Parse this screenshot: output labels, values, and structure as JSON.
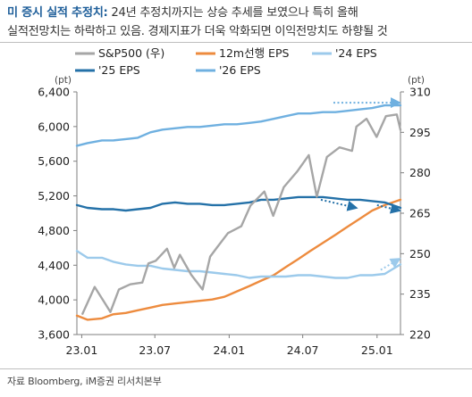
{
  "title": {
    "head": "미 증시 실적 추정치:",
    "line1": " 24년 추정치까지는 상승 추세를 보였으나 특히 올해",
    "line2": "실적전망치는 하락하고 있음. 경제지표가 더욱 악화되면 이익전망치도 하향될 것"
  },
  "source": "자료 Bloomberg, iM증권 리서치본부",
  "chart_data": {
    "type": "line",
    "x_ticks": [
      "23.01",
      "23.07",
      "24.01",
      "24.07",
      "25.01"
    ],
    "x_range": [
      "2022-12-20",
      "2025-02-28"
    ],
    "y_left": {
      "unit": "(pt)",
      "ticks": [
        3600,
        4000,
        4400,
        4800,
        5200,
        5600,
        6000,
        6400
      ],
      "lim": [
        3600,
        6400
      ]
    },
    "y_right": {
      "unit": "(pt)",
      "ticks": [
        220,
        235,
        250,
        265,
        280,
        295,
        310
      ],
      "lim": [
        220,
        310
      ]
    },
    "grid": false,
    "legend": [
      {
        "label": "S&P500 (우)",
        "color": "#a6a6a6"
      },
      {
        "label": "12m선행 EPS",
        "color": "#ed8b3e"
      },
      {
        "label": "'24 EPS",
        "color": "#9ccaeb"
      },
      {
        "label": "'25 EPS",
        "color": "#2471a8"
      },
      {
        "label": "'26 EPS",
        "color": "#6fb0e0"
      }
    ],
    "series": [
      {
        "name": "S&P500 (우)",
        "axis": "left",
        "color": "#a6a6a6",
        "x": [
          "2023-01-03",
          "2023-02-02",
          "2023-03-01",
          "2023-03-13",
          "2023-04-03",
          "2023-05-01",
          "2023-05-31",
          "2023-06-15",
          "2023-07-03",
          "2023-07-31",
          "2023-08-18",
          "2023-09-01",
          "2023-09-29",
          "2023-10-27",
          "2023-11-15",
          "2023-12-01",
          "2023-12-29",
          "2024-01-31",
          "2024-02-23",
          "2024-03-28",
          "2024-04-19",
          "2024-05-15",
          "2024-06-17",
          "2024-07-16",
          "2024-08-05",
          "2024-08-30",
          "2024-09-30",
          "2024-10-31",
          "2024-11-11",
          "2024-12-06",
          "2024-12-31",
          "2025-01-23",
          "2025-02-19",
          "2025-02-28"
        ],
        "values": [
          3840,
          4150,
          3950,
          3860,
          4120,
          4180,
          4200,
          4420,
          4450,
          4590,
          4370,
          4520,
          4290,
          4120,
          4500,
          4600,
          4770,
          4850,
          5090,
          5250,
          4970,
          5300,
          5480,
          5670,
          5190,
          5650,
          5760,
          5720,
          6000,
          6090,
          5880,
          6120,
          6140,
          5960
        ]
      },
      {
        "name": "12m선행 EPS",
        "axis": "right",
        "color": "#ed8b3e",
        "x": [
          "2022-12-20",
          "2023-01-15",
          "2023-02-20",
          "2023-03-20",
          "2023-04-20",
          "2023-05-20",
          "2023-06-20",
          "2023-07-20",
          "2023-08-20",
          "2023-09-20",
          "2023-10-20",
          "2023-11-20",
          "2023-12-20",
          "2024-01-20",
          "2024-02-20",
          "2024-03-20",
          "2024-04-20",
          "2024-05-20",
          "2024-06-20",
          "2024-07-20",
          "2024-08-20",
          "2024-09-20",
          "2024-10-20",
          "2024-11-20",
          "2024-12-20",
          "2025-01-20",
          "2025-02-28"
        ],
        "values": [
          227,
          225.5,
          226,
          227.5,
          228,
          229,
          230,
          231,
          231.5,
          232,
          232.5,
          233,
          234,
          236,
          238,
          240,
          242,
          245,
          248,
          251,
          254,
          257,
          260,
          263,
          266,
          268,
          270
        ]
      },
      {
        "name": "'24 EPS",
        "axis": "right",
        "color": "#9ccaeb",
        "x": [
          "2022-12-20",
          "2023-01-15",
          "2023-02-20",
          "2023-03-20",
          "2023-04-20",
          "2023-05-20",
          "2023-06-20",
          "2023-07-20",
          "2023-08-20",
          "2023-09-20",
          "2023-10-20",
          "2023-11-20",
          "2023-12-20",
          "2024-01-20",
          "2024-02-20",
          "2024-03-20",
          "2024-04-20",
          "2024-05-20",
          "2024-06-20",
          "2024-07-20",
          "2024-08-20",
          "2024-09-20",
          "2024-10-20",
          "2024-11-20",
          "2024-12-20",
          "2025-01-20",
          "2025-02-28"
        ],
        "values": [
          251,
          248.5,
          248.5,
          247,
          246,
          245.5,
          245.5,
          244.5,
          244,
          243.5,
          243.5,
          243,
          242.5,
          242,
          241,
          241.5,
          241.5,
          241.5,
          242,
          242,
          241.5,
          241,
          241,
          242,
          242,
          242.5,
          246
        ]
      },
      {
        "name": "'25 EPS",
        "axis": "right",
        "color": "#2471a8",
        "x": [
          "2022-12-20",
          "2023-01-15",
          "2023-02-20",
          "2023-03-20",
          "2023-04-20",
          "2023-05-20",
          "2023-06-20",
          "2023-07-20",
          "2023-08-20",
          "2023-09-20",
          "2023-10-20",
          "2023-11-20",
          "2023-12-20",
          "2024-01-20",
          "2024-02-20",
          "2024-03-20",
          "2024-04-20",
          "2024-05-20",
          "2024-06-20",
          "2024-07-20",
          "2024-08-20",
          "2024-09-20",
          "2024-10-20",
          "2024-11-20",
          "2024-12-20",
          "2025-01-20",
          "2025-02-28"
        ],
        "values": [
          268,
          267,
          266.5,
          266.5,
          266,
          266.5,
          267,
          268.5,
          269,
          268.5,
          268.5,
          268,
          268,
          268.5,
          269,
          270,
          270,
          270.5,
          271,
          271,
          271,
          270.5,
          270,
          270,
          269.5,
          269,
          267
        ]
      },
      {
        "name": "'26 EPS",
        "axis": "right",
        "color": "#6fb0e0",
        "x": [
          "2022-12-20",
          "2023-01-15",
          "2023-02-20",
          "2023-03-20",
          "2023-04-20",
          "2023-05-20",
          "2023-06-20",
          "2023-07-20",
          "2023-08-20",
          "2023-09-20",
          "2023-10-20",
          "2023-11-20",
          "2023-12-20",
          "2024-01-20",
          "2024-02-20",
          "2024-03-20",
          "2024-04-20",
          "2024-05-20",
          "2024-06-20",
          "2024-07-20",
          "2024-08-20",
          "2024-09-20",
          "2024-10-20",
          "2024-11-20",
          "2024-12-20",
          "2025-01-20",
          "2025-02-28"
        ],
        "values": [
          290,
          291,
          292,
          292,
          292.5,
          293,
          295,
          296,
          296.5,
          297,
          297,
          297.5,
          298,
          298,
          298.5,
          299,
          300,
          301,
          302,
          302,
          302.5,
          302.5,
          303,
          303.5,
          304,
          305,
          305
        ]
      }
    ],
    "annotations": [
      {
        "type": "dotted-arrow",
        "series": "'26 EPS",
        "from": [
          "2024-09-15",
          306
        ],
        "to": [
          "2025-02-25",
          306
        ]
      },
      {
        "type": "dotted-arrow",
        "series": "'25 EPS",
        "from": [
          "2024-08-15",
          270
        ],
        "to": [
          "2024-11-10",
          267
        ]
      },
      {
        "type": "dotted-arrow",
        "series": "'25 EPS",
        "from": [
          "2025-01-01",
          268
        ],
        "to": [
          "2025-02-25",
          266
        ]
      },
      {
        "type": "dotted-arrow",
        "series": "'24 EPS",
        "from": [
          "2025-01-10",
          244
        ],
        "to": [
          "2025-02-25",
          248
        ]
      }
    ]
  }
}
